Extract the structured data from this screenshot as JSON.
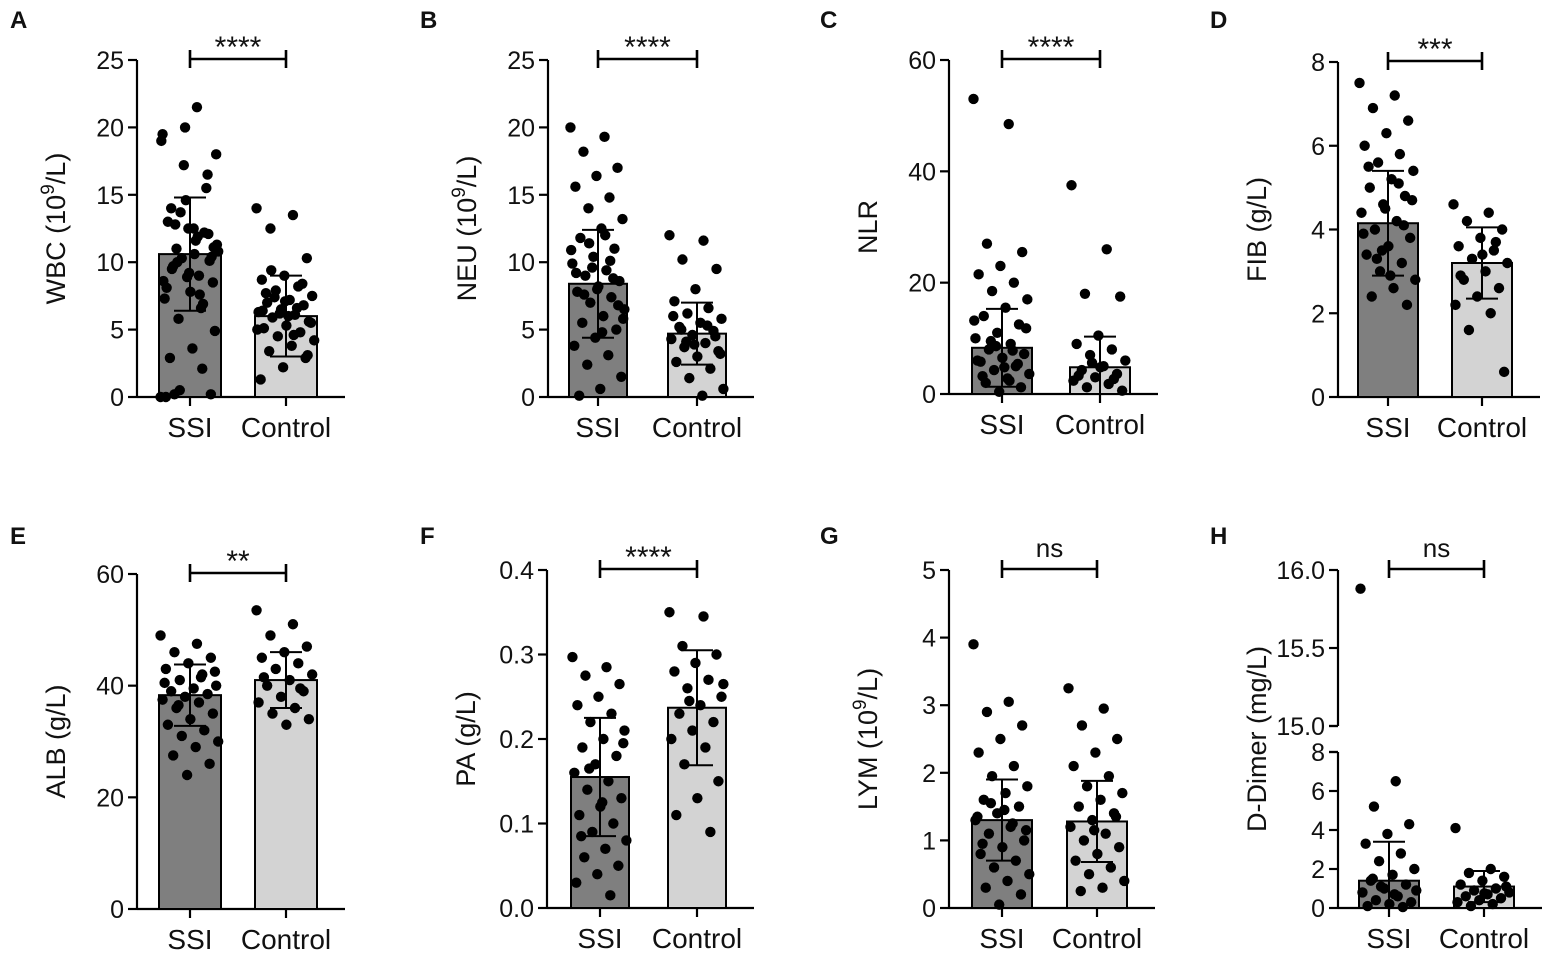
{
  "chart_data": [
    {
      "type": "bar",
      "panel": "A",
      "ylabel": "WBC (10",
      "ylabel_sup": "9",
      "ylabel_post": "/L)",
      "categories": [
        "SSI",
        "Control"
      ],
      "values": [
        10.6,
        6.0
      ],
      "sd": [
        4.2,
        3.0
      ],
      "yticks": [
        0,
        5,
        10,
        15,
        20,
        25
      ],
      "ytick_labels": [
        "0",
        "5",
        "10",
        "15",
        "20",
        "25"
      ],
      "ylim": [
        0,
        25
      ],
      "significance": "****",
      "points": [
        [
          0,
          21.5,
          0.2,
          0.2,
          12.5,
          0.0,
          2.1,
          0.5,
          18.0,
          12.5,
          14.0,
          16.5,
          20.0,
          19.5,
          9.0,
          11.0,
          8.5,
          7.8,
          13.0,
          12.2,
          10.3,
          10.8,
          11.6,
          9.7,
          10.1,
          8.9,
          7.3,
          6.6,
          5.8,
          4.9,
          3.6,
          2.9,
          15.5,
          17.2,
          19.0,
          11.9,
          12.8,
          10.4,
          9.2,
          8.1,
          6.9,
          13.7,
          11.3,
          10.6,
          9.5,
          12.1,
          14.6,
          8.6,
          7.6,
          10.0,
          11.1
        ],
        [
          14.0,
          13.5,
          12.5,
          10.3,
          9.0,
          8.7,
          8.2,
          7.9,
          7.5,
          7.2,
          7.0,
          6.8,
          6.5,
          6.3,
          6.1,
          5.9,
          5.6,
          5.3,
          5.1,
          4.8,
          4.5,
          4.2,
          3.8,
          3.4,
          2.9,
          2.2,
          1.3,
          6.6,
          7.4,
          5.5,
          6.0,
          7.7,
          8.4,
          6.2,
          5.0,
          4.6,
          9.4,
          3.1,
          7.1,
          6.4
        ]
      ]
    },
    {
      "type": "bar",
      "panel": "B",
      "ylabel": "NEU (10",
      "ylabel_sup": "9",
      "ylabel_post": "/L)",
      "categories": [
        "SSI",
        "Control"
      ],
      "values": [
        8.4,
        4.7
      ],
      "sd": [
        4.0,
        2.3
      ],
      "yticks": [
        0,
        5,
        10,
        15,
        20,
        25
      ],
      "ytick_labels": [
        "0",
        "5",
        "10",
        "15",
        "20",
        "25"
      ],
      "ylim": [
        0,
        25
      ],
      "significance": "****",
      "points": [
        [
          20.0,
          19.3,
          18.2,
          17.0,
          16.4,
          15.6,
          14.8,
          14.0,
          13.2,
          12.5,
          11.8,
          11.0,
          10.4,
          9.9,
          9.4,
          9.0,
          8.6,
          8.2,
          7.8,
          7.4,
          7.0,
          6.5,
          6.0,
          5.5,
          5.0,
          4.4,
          3.8,
          3.1,
          2.4,
          1.5,
          0.6,
          0.1,
          8.8,
          9.6,
          10.9,
          12.0,
          7.6,
          6.8,
          8.0,
          9.2,
          10.1,
          11.4,
          5.8,
          4.8
        ],
        [
          12.0,
          11.6,
          10.2,
          9.5,
          8.0,
          7.1,
          6.6,
          6.2,
          5.8,
          5.5,
          5.2,
          4.9,
          4.6,
          4.3,
          4.0,
          3.7,
          3.4,
          3.0,
          2.6,
          2.1,
          1.4,
          0.6,
          0.1,
          5.0,
          4.5,
          3.9,
          6.0,
          5.3,
          4.1,
          3.2
        ]
      ]
    },
    {
      "type": "bar",
      "panel": "C",
      "ylabel": "NLR",
      "ylabel_sup": "",
      "ylabel_post": "",
      "categories": [
        "SSI",
        "Control"
      ],
      "values": [
        8.3,
        4.8
      ],
      "sd": [
        7.0,
        5.5
      ],
      "yticks": [
        0,
        20,
        40,
        60
      ],
      "ytick_labels": [
        "0",
        "20",
        "40",
        "60"
      ],
      "ylim": [
        0,
        60
      ],
      "significance": "****",
      "points": [
        [
          53.0,
          48.5,
          27.0,
          25.5,
          23.0,
          21.5,
          20.0,
          18.5,
          17.0,
          15.5,
          14.0,
          12.5,
          11.0,
          10.0,
          9.0,
          8.0,
          7.2,
          6.5,
          5.8,
          5.0,
          4.3,
          3.6,
          2.8,
          2.0,
          1.2,
          0.4,
          6.0,
          7.8,
          9.5,
          11.8,
          4.8,
          3.2,
          5.4,
          8.6,
          13.2,
          2.4
        ],
        [
          37.5,
          26.0,
          18.0,
          17.5,
          10.5,
          9.0,
          8.0,
          7.0,
          6.0,
          5.0,
          4.3,
          3.6,
          3.0,
          2.4,
          1.8,
          1.2,
          0.6,
          4.8,
          3.3,
          2.7,
          5.6
        ]
      ]
    },
    {
      "type": "bar",
      "panel": "D",
      "ylabel": "FIB (g/L)",
      "ylabel_sup": "",
      "ylabel_post": "",
      "categories": [
        "SSI",
        "Control"
      ],
      "values": [
        4.15,
        3.2
      ],
      "sd": [
        1.25,
        0.85
      ],
      "yticks": [
        0,
        2,
        4,
        6,
        8
      ],
      "ytick_labels": [
        "0",
        "2",
        "4",
        "6",
        "8"
      ],
      "ylim": [
        0,
        8
      ],
      "significance": "***",
      "points": [
        [
          7.5,
          7.2,
          6.9,
          6.6,
          6.3,
          6.0,
          5.8,
          5.6,
          5.4,
          5.2,
          5.0,
          4.8,
          4.6,
          4.4,
          4.2,
          4.0,
          3.8,
          3.6,
          3.4,
          3.2,
          3.0,
          2.8,
          2.6,
          2.4,
          2.2,
          4.5,
          3.9,
          5.1,
          3.3,
          4.7,
          2.9,
          5.5,
          4.1,
          3.5
        ],
        [
          4.6,
          4.4,
          4.2,
          4.0,
          3.8,
          3.6,
          3.5,
          3.3,
          3.2,
          3.0,
          2.8,
          2.6,
          2.4,
          2.2,
          2.0,
          1.6,
          0.6,
          3.4,
          2.9,
          3.7
        ]
      ]
    },
    {
      "type": "bar",
      "panel": "E",
      "ylabel": "ALB (g/L)",
      "ylabel_sup": "",
      "ylabel_post": "",
      "categories": [
        "SSI",
        "Control"
      ],
      "values": [
        38.3,
        41.0
      ],
      "sd": [
        5.5,
        5.0
      ],
      "yticks": [
        0,
        20,
        40,
        60
      ],
      "ytick_labels": [
        "0",
        "20",
        "40",
        "60"
      ],
      "ylim": [
        0,
        60
      ],
      "significance": "**",
      "points": [
        [
          49.0,
          47.5,
          46.0,
          45.0,
          44.0,
          43.0,
          42.0,
          41.0,
          40.0,
          39.5,
          39.0,
          38.5,
          38.0,
          37.5,
          37.0,
          36.0,
          35.0,
          34.0,
          33.0,
          32.0,
          31.0,
          30.0,
          29.0,
          27.5,
          26.0,
          24.0,
          40.5,
          41.5,
          36.5,
          42.5
        ],
        [
          53.5,
          51.0,
          49.0,
          47.0,
          46.0,
          45.0,
          44.0,
          43.0,
          42.0,
          41.0,
          40.0,
          39.0,
          38.0,
          37.0,
          36.0,
          35.0,
          34.0,
          33.0,
          41.5,
          39.5
        ]
      ]
    },
    {
      "type": "bar",
      "panel": "F",
      "ylabel": "PA (g/L)",
      "ylabel_sup": "",
      "ylabel_post": "",
      "categories": [
        "SSI",
        "Control"
      ],
      "values": [
        0.155,
        0.237
      ],
      "sd": [
        0.07,
        0.068
      ],
      "yticks": [
        0.0,
        0.1,
        0.2,
        0.3,
        0.4
      ],
      "ytick_labels": [
        "0.0",
        "0.1",
        "0.2",
        "0.3",
        "0.4"
      ],
      "ylim": [
        0,
        0.4
      ],
      "significance": "****",
      "points": [
        [
          0.297,
          0.285,
          0.275,
          0.265,
          0.25,
          0.24,
          0.23,
          0.22,
          0.21,
          0.2,
          0.19,
          0.18,
          0.17,
          0.16,
          0.15,
          0.14,
          0.13,
          0.12,
          0.11,
          0.1,
          0.09,
          0.08,
          0.07,
          0.06,
          0.05,
          0.04,
          0.03,
          0.015,
          0.165,
          0.195,
          0.125,
          0.085
        ],
        [
          0.35,
          0.345,
          0.31,
          0.3,
          0.29,
          0.28,
          0.27,
          0.26,
          0.25,
          0.24,
          0.23,
          0.22,
          0.21,
          0.2,
          0.19,
          0.17,
          0.15,
          0.13,
          0.11,
          0.09,
          0.245,
          0.265
        ]
      ]
    },
    {
      "type": "bar",
      "panel": "G",
      "ylabel": "LYM (10",
      "ylabel_sup": "9",
      "ylabel_post": "/L)",
      "categories": [
        "SSI",
        "Control"
      ],
      "values": [
        1.3,
        1.28
      ],
      "sd": [
        0.6,
        0.6
      ],
      "yticks": [
        0,
        1,
        2,
        3,
        4,
        5
      ],
      "ytick_labels": [
        "0",
        "1",
        "2",
        "3",
        "4",
        "5"
      ],
      "ylim": [
        0,
        5
      ],
      "significance": "ns",
      "points": [
        [
          3.9,
          3.05,
          2.9,
          2.7,
          2.5,
          2.3,
          2.1,
          1.95,
          1.8,
          1.7,
          1.6,
          1.5,
          1.4,
          1.3,
          1.2,
          1.1,
          1.0,
          0.9,
          0.8,
          0.7,
          0.6,
          0.5,
          0.4,
          0.3,
          0.2,
          0.05,
          1.35,
          1.25,
          1.55,
          1.15,
          1.45,
          0.95
        ],
        [
          3.25,
          2.95,
          2.7,
          2.5,
          2.3,
          2.1,
          1.95,
          1.8,
          1.7,
          1.6,
          1.5,
          1.4,
          1.3,
          1.2,
          1.1,
          1.0,
          0.9,
          0.8,
          0.7,
          0.6,
          0.5,
          0.4,
          0.3,
          0.25,
          1.35,
          1.15
        ]
      ]
    },
    {
      "type": "bar",
      "panel": "H",
      "ylabel": "D-Dimer (mg/L)",
      "ylabel_sup": "",
      "ylabel_post": "",
      "categories": [
        "SSI",
        "Control"
      ],
      "values": [
        1.4,
        1.1
      ],
      "sd": [
        2.0,
        0.8
      ],
      "axis_break": true,
      "yticks_lower": [
        0,
        2,
        4,
        6,
        8
      ],
      "ytick_labels_lower": [
        "0",
        "2",
        "4",
        "6",
        "8"
      ],
      "yticks_upper": [
        15.0,
        15.5,
        16.0
      ],
      "ytick_labels_upper": [
        "15.0",
        "15.5",
        "16.0"
      ],
      "ylim_lower": [
        0,
        8
      ],
      "ylim_upper": [
        15.0,
        16.0
      ],
      "significance": "ns",
      "points": [
        [
          15.88,
          6.5,
          5.2,
          4.3,
          3.8,
          3.3,
          2.8,
          2.4,
          2.0,
          1.7,
          1.4,
          1.2,
          1.0,
          0.8,
          0.6,
          0.4,
          0.3,
          0.2,
          0.1,
          0.05,
          1.1,
          0.9,
          0.7,
          1.5
        ],
        [
          4.1,
          2.0,
          1.8,
          1.6,
          1.4,
          1.2,
          1.0,
          0.9,
          0.8,
          0.7,
          0.6,
          0.5,
          0.4,
          0.3,
          0.2,
          0.1,
          1.1,
          0.75
        ]
      ]
    }
  ]
}
